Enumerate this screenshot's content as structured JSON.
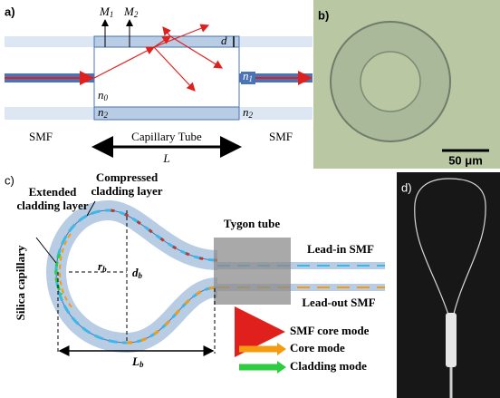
{
  "panel_a": {
    "label": "a)",
    "m1": {
      "base": "M",
      "sub": "1"
    },
    "m2": {
      "base": "M",
      "sub": "2"
    },
    "d": "d",
    "n0": {
      "base": "n",
      "sub": "0"
    },
    "n2_left": {
      "base": "n",
      "sub": "2"
    },
    "n1": {
      "base": "n",
      "sub": "1"
    },
    "n2_right": {
      "base": "n",
      "sub": "2"
    },
    "smf_left": "SMF",
    "capillary": "Capillary Tube",
    "smf_right": "SMF",
    "length": "L"
  },
  "panel_b": {
    "label": "b)",
    "scale": "50 μm"
  },
  "panel_c": {
    "label": "c)",
    "extended": [
      "Extended",
      "cladding layer"
    ],
    "compressed": [
      "Compressed",
      "cladding layer"
    ],
    "silica": "Silica capillary",
    "tygon": "Tygon tube",
    "lead_in": "Lead-in SMF",
    "lead_out": "Lead-out SMF",
    "rb": {
      "base": "r",
      "sub": "b"
    },
    "db": {
      "base": "d",
      "sub": "b"
    },
    "lb": {
      "base": "L",
      "sub": "b"
    },
    "legend": [
      "SMF core mode",
      "Core mode",
      "Cladding mode"
    ]
  },
  "panel_d": {
    "label": "d)"
  }
}
